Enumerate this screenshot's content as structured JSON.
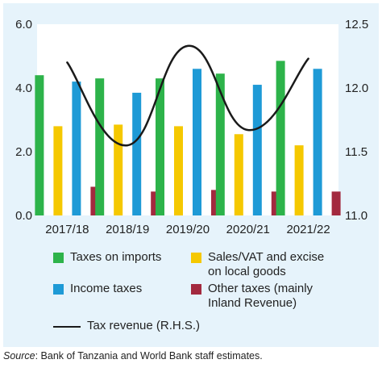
{
  "chart_data": {
    "type": "bar",
    "categories": [
      "2017/18",
      "2018/19",
      "2019/20",
      "2020/21",
      "2021/22"
    ],
    "series": [
      {
        "name": "Taxes on imports",
        "axis": "left",
        "color": "#2db34a",
        "values": [
          4.4,
          4.3,
          4.3,
          4.45,
          4.85
        ]
      },
      {
        "name": "Sales/VAT and excise\non local goods",
        "axis": "left",
        "color": "#f5c800",
        "values": [
          2.8,
          2.85,
          2.8,
          2.55,
          2.2
        ]
      },
      {
        "name": "Income taxes",
        "axis": "left",
        "color": "#1e9ad6",
        "values": [
          4.2,
          3.85,
          4.6,
          4.1,
          4.6
        ]
      },
      {
        "name": "Other taxes (mainly\nInland Revenue)",
        "axis": "left",
        "color": "#a3293f",
        "values": [
          0.9,
          0.75,
          0.8,
          0.75,
          0.75
        ]
      }
    ],
    "line_series": {
      "name": "Tax revenue (R.H.S.)",
      "axis": "right",
      "color": "#1a1a1a",
      "values": [
        12.2,
        11.55,
        12.33,
        11.67,
        12.23
      ]
    },
    "ylim_left": [
      0,
      6
    ],
    "yticks_left": [
      "0.0",
      "2.0",
      "4.0",
      "6.0"
    ],
    "ylim_right": [
      11,
      12.5
    ],
    "yticks_right": [
      "11.0",
      "11.5",
      "12.0",
      "12.5"
    ],
    "legend_position": "bottom"
  },
  "source": {
    "label": "Source",
    "text": ": Bank of Tanzania and World Bank staff estimates."
  }
}
